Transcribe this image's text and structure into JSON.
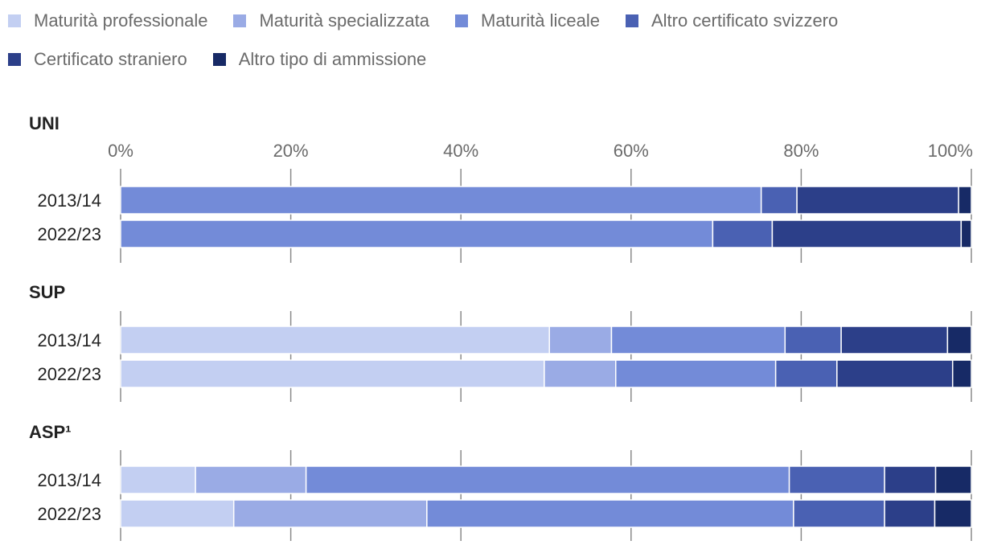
{
  "chart_data": {
    "type": "bar",
    "orientation": "horizontal",
    "stacked": true,
    "xlim": [
      0,
      100
    ],
    "x_ticks": [
      "0%",
      "20%",
      "40%",
      "60%",
      "80%",
      "100%"
    ],
    "x_tick_values": [
      0,
      20,
      40,
      60,
      80,
      100
    ],
    "series_names": [
      "Maturità professionale",
      "Maturità specializzata",
      "Maturità liceale",
      "Altro certificato svizzero",
      "Certificato straniero",
      "Altro tipo di ammissione"
    ],
    "colors": [
      "#c3cff2",
      "#9aabe5",
      "#738bd8",
      "#4a61b3",
      "#2c3f89",
      "#172a66"
    ],
    "panels": [
      {
        "title": "UNI",
        "categories": [
          "2013/14",
          "2022/23"
        ],
        "values": [
          [
            0,
            0,
            75.3,
            4.2,
            19.0,
            1.5
          ],
          [
            0,
            0,
            69.6,
            7.0,
            22.2,
            1.2
          ]
        ]
      },
      {
        "title": "SUP",
        "categories": [
          "2013/14",
          "2022/23"
        ],
        "values": [
          [
            50.4,
            7.3,
            20.4,
            6.6,
            12.5,
            2.8
          ],
          [
            49.8,
            8.4,
            18.8,
            7.2,
            13.6,
            2.2
          ]
        ]
      },
      {
        "title": "ASP¹",
        "categories": [
          "2013/14",
          "2022/23"
        ],
        "values": [
          [
            8.8,
            13.0,
            56.8,
            11.2,
            6.0,
            4.2
          ],
          [
            13.3,
            22.7,
            43.1,
            10.7,
            5.9,
            4.3
          ]
        ]
      }
    ]
  }
}
